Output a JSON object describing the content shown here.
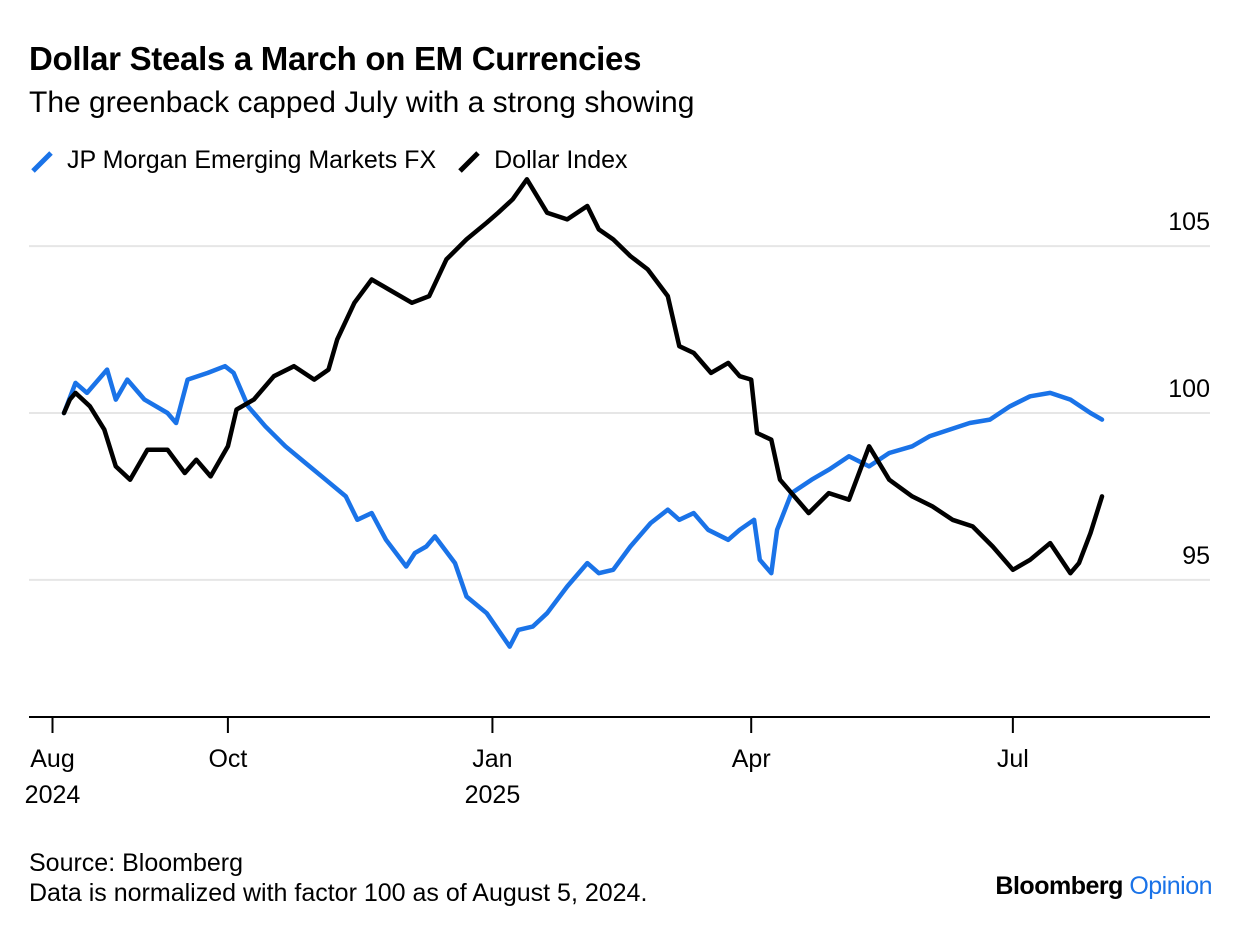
{
  "title": "Dollar Steals a March on EM Currencies",
  "subtitle": "The greenback capped July with a strong showing",
  "source": "Source: Bloomberg",
  "note": "Data is normalized with factor 100 as of August 5, 2024.",
  "brand": {
    "primary": "Bloomberg",
    "secondary": "Opinion"
  },
  "colors": {
    "em": "#1a73e8",
    "dxy": "#000000",
    "grid": "#e6e6e6",
    "brand_accent": "#1a73e8"
  },
  "chart_data": {
    "type": "line",
    "title": "Dollar Steals a March on EM Currencies",
    "subtitle": "The greenback capped July with a strong showing",
    "ylim": [
      91.1,
      106.8
    ],
    "yticks": [
      95,
      100,
      105
    ],
    "xlim": [
      "2024-07-26",
      "2025-08-12"
    ],
    "xticks": [
      {
        "date": "2024-08-01",
        "line1": "Aug",
        "line2": "2024"
      },
      {
        "date": "2024-10-01",
        "line1": "Oct",
        "line2": ""
      },
      {
        "date": "2025-01-01",
        "line1": "Jan",
        "line2": "2025"
      },
      {
        "date": "2025-04-01",
        "line1": "Apr",
        "line2": ""
      },
      {
        "date": "2025-07-01",
        "line1": "Jul",
        "line2": ""
      }
    ],
    "grid": true,
    "legend": "top-left",
    "series": [
      {
        "name": "JP Morgan Emerging Markets FX",
        "color": "#1a73e8",
        "points": [
          [
            "2024-08-05",
            100.0
          ],
          [
            "2024-08-09",
            100.9
          ],
          [
            "2024-08-13",
            100.6
          ],
          [
            "2024-08-20",
            101.3
          ],
          [
            "2024-08-23",
            100.4
          ],
          [
            "2024-08-27",
            101.0
          ],
          [
            "2024-09-02",
            100.4
          ],
          [
            "2024-09-10",
            100.0
          ],
          [
            "2024-09-13",
            99.7
          ],
          [
            "2024-09-17",
            101.0
          ],
          [
            "2024-09-24",
            101.2
          ],
          [
            "2024-09-30",
            101.4
          ],
          [
            "2024-10-03",
            101.2
          ],
          [
            "2024-10-08",
            100.2
          ],
          [
            "2024-10-14",
            99.6
          ],
          [
            "2024-10-21",
            99.0
          ],
          [
            "2024-10-28",
            98.5
          ],
          [
            "2024-11-04",
            98.0
          ],
          [
            "2024-11-11",
            97.5
          ],
          [
            "2024-11-15",
            96.8
          ],
          [
            "2024-11-20",
            97.0
          ],
          [
            "2024-11-25",
            96.2
          ],
          [
            "2024-12-02",
            95.4
          ],
          [
            "2024-12-05",
            95.8
          ],
          [
            "2024-12-09",
            96.0
          ],
          [
            "2024-12-12",
            96.3
          ],
          [
            "2024-12-19",
            95.5
          ],
          [
            "2024-12-23",
            94.5
          ],
          [
            "2024-12-30",
            94.0
          ],
          [
            "2025-01-03",
            93.5
          ],
          [
            "2025-01-07",
            93.0
          ],
          [
            "2025-01-10",
            93.5
          ],
          [
            "2025-01-15",
            93.6
          ],
          [
            "2025-01-20",
            94.0
          ],
          [
            "2025-01-27",
            94.8
          ],
          [
            "2025-02-03",
            95.5
          ],
          [
            "2025-02-07",
            95.2
          ],
          [
            "2025-02-12",
            95.3
          ],
          [
            "2025-02-18",
            96.0
          ],
          [
            "2025-02-25",
            96.7
          ],
          [
            "2025-03-03",
            97.1
          ],
          [
            "2025-03-07",
            96.8
          ],
          [
            "2025-03-12",
            97.0
          ],
          [
            "2025-03-17",
            96.5
          ],
          [
            "2025-03-24",
            96.2
          ],
          [
            "2025-03-28",
            96.5
          ],
          [
            "2025-04-02",
            96.8
          ],
          [
            "2025-04-04",
            95.6
          ],
          [
            "2025-04-08",
            95.2
          ],
          [
            "2025-04-10",
            96.5
          ],
          [
            "2025-04-15",
            97.6
          ],
          [
            "2025-04-22",
            98.0
          ],
          [
            "2025-04-28",
            98.3
          ],
          [
            "2025-05-05",
            98.7
          ],
          [
            "2025-05-12",
            98.4
          ],
          [
            "2025-05-19",
            98.8
          ],
          [
            "2025-05-27",
            99.0
          ],
          [
            "2025-06-02",
            99.3
          ],
          [
            "2025-06-09",
            99.5
          ],
          [
            "2025-06-16",
            99.7
          ],
          [
            "2025-06-23",
            99.8
          ],
          [
            "2025-06-30",
            100.2
          ],
          [
            "2025-07-07",
            100.5
          ],
          [
            "2025-07-14",
            100.6
          ],
          [
            "2025-07-21",
            100.4
          ],
          [
            "2025-07-28",
            100.0
          ],
          [
            "2025-08-01",
            99.8
          ]
        ]
      },
      {
        "name": "Dollar Index",
        "color": "#000000",
        "points": [
          [
            "2024-08-05",
            100.0
          ],
          [
            "2024-08-07",
            100.4
          ],
          [
            "2024-08-09",
            100.6
          ],
          [
            "2024-08-14",
            100.2
          ],
          [
            "2024-08-19",
            99.5
          ],
          [
            "2024-08-23",
            98.4
          ],
          [
            "2024-08-28",
            98.0
          ],
          [
            "2024-09-03",
            98.9
          ],
          [
            "2024-09-10",
            98.9
          ],
          [
            "2024-09-16",
            98.2
          ],
          [
            "2024-09-20",
            98.6
          ],
          [
            "2024-09-25",
            98.1
          ],
          [
            "2024-10-01",
            99.0
          ],
          [
            "2024-10-04",
            100.1
          ],
          [
            "2024-10-10",
            100.4
          ],
          [
            "2024-10-17",
            101.1
          ],
          [
            "2024-10-24",
            101.4
          ],
          [
            "2024-10-31",
            101.0
          ],
          [
            "2024-11-05",
            101.3
          ],
          [
            "2024-11-08",
            102.2
          ],
          [
            "2024-11-14",
            103.3
          ],
          [
            "2024-11-20",
            104.0
          ],
          [
            "2024-11-26",
            103.7
          ],
          [
            "2024-12-04",
            103.3
          ],
          [
            "2024-12-10",
            103.5
          ],
          [
            "2024-12-16",
            104.6
          ],
          [
            "2024-12-23",
            105.2
          ],
          [
            "2024-12-30",
            105.7
          ],
          [
            "2025-01-03",
            106.0
          ],
          [
            "2025-01-08",
            106.4
          ],
          [
            "2025-01-13",
            107.0
          ],
          [
            "2025-01-20",
            106.0
          ],
          [
            "2025-01-27",
            105.8
          ],
          [
            "2025-02-03",
            106.2
          ],
          [
            "2025-02-07",
            105.5
          ],
          [
            "2025-02-12",
            105.2
          ],
          [
            "2025-02-18",
            104.7
          ],
          [
            "2025-02-24",
            104.3
          ],
          [
            "2025-03-03",
            103.5
          ],
          [
            "2025-03-07",
            102.0
          ],
          [
            "2025-03-12",
            101.8
          ],
          [
            "2025-03-18",
            101.2
          ],
          [
            "2025-03-24",
            101.5
          ],
          [
            "2025-03-28",
            101.1
          ],
          [
            "2025-04-01",
            101.0
          ],
          [
            "2025-04-03",
            99.4
          ],
          [
            "2025-04-08",
            99.2
          ],
          [
            "2025-04-11",
            98.0
          ],
          [
            "2025-04-21",
            97.0
          ],
          [
            "2025-04-28",
            97.6
          ],
          [
            "2025-05-05",
            97.4
          ],
          [
            "2025-05-12",
            99.0
          ],
          [
            "2025-05-19",
            98.0
          ],
          [
            "2025-05-27",
            97.5
          ],
          [
            "2025-06-03",
            97.2
          ],
          [
            "2025-06-10",
            96.8
          ],
          [
            "2025-06-17",
            96.6
          ],
          [
            "2025-06-24",
            96.0
          ],
          [
            "2025-07-01",
            95.3
          ],
          [
            "2025-07-07",
            95.6
          ],
          [
            "2025-07-14",
            96.1
          ],
          [
            "2025-07-21",
            95.2
          ],
          [
            "2025-07-24",
            95.5
          ],
          [
            "2025-07-28",
            96.4
          ],
          [
            "2025-08-01",
            97.5
          ]
        ]
      }
    ]
  }
}
